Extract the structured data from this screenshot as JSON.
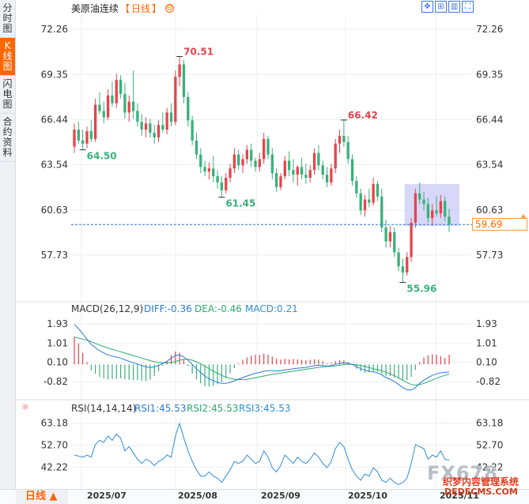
{
  "side_tabs": [
    {
      "label": "分时图",
      "active": false
    },
    {
      "label": "K线图",
      "active": true
    },
    {
      "label": "闪电图",
      "active": false
    },
    {
      "label": "合约资料",
      "active": false
    }
  ],
  "header": {
    "instrument": "美原油连续",
    "period_open": "【",
    "period": "日线",
    "period_close": "】",
    "toggle_icon": "⊖"
  },
  "tools": [
    {
      "name": "move-icon",
      "glyph": "✥"
    },
    {
      "name": "zoom-in-icon",
      "glyph": "⊞"
    },
    {
      "name": "chart-type-icon",
      "glyph": "▥"
    },
    {
      "name": "fullscreen-icon",
      "glyph": "⛶"
    }
  ],
  "chart_data": {
    "type": "candlestick",
    "x_ticks": [
      "2025/07",
      "2025/08",
      "2025/09",
      "2025/10",
      "2025/11"
    ],
    "y_ticks": [
      72.26,
      69.35,
      66.44,
      63.54,
      60.63,
      57.73
    ],
    "ylim": [
      54.82,
      73.23
    ],
    "current_price": 59.69,
    "annotations": [
      {
        "text": "70.51",
        "value": 70.51,
        "type": "high"
      },
      {
        "text": "64.50",
        "value": 64.5,
        "type": "low"
      },
      {
        "text": "61.45",
        "value": 61.45,
        "type": "low"
      },
      {
        "text": "66.42",
        "value": 66.42,
        "type": "high"
      },
      {
        "text": "55.96",
        "value": 55.96,
        "type": "low"
      }
    ],
    "colors": {
      "up": "#e8434b",
      "down": "#3ab07a",
      "grid": "#e8ebf0",
      "price_line": "#2f7ccc",
      "highlight": "#b9bcf2"
    },
    "candles": [
      {
        "o": 64.7,
        "h": 66.2,
        "l": 64.3,
        "c": 65.8
      },
      {
        "o": 65.8,
        "h": 66.3,
        "l": 64.9,
        "c": 65.1
      },
      {
        "o": 65.1,
        "h": 65.8,
        "l": 64.5,
        "c": 64.9
      },
      {
        "o": 64.9,
        "h": 66.0,
        "l": 64.6,
        "c": 65.7
      },
      {
        "o": 65.7,
        "h": 66.4,
        "l": 65.0,
        "c": 65.2
      },
      {
        "o": 65.2,
        "h": 67.8,
        "l": 65.0,
        "c": 67.4
      },
      {
        "o": 67.4,
        "h": 68.2,
        "l": 66.8,
        "c": 67.0
      },
      {
        "o": 67.0,
        "h": 67.6,
        "l": 66.2,
        "c": 66.6
      },
      {
        "o": 66.6,
        "h": 68.4,
        "l": 66.4,
        "c": 68.0
      },
      {
        "o": 68.0,
        "h": 68.9,
        "l": 67.3,
        "c": 67.5
      },
      {
        "o": 67.5,
        "h": 69.4,
        "l": 67.2,
        "c": 69.0
      },
      {
        "o": 69.0,
        "h": 69.3,
        "l": 67.8,
        "c": 68.1
      },
      {
        "o": 68.1,
        "h": 68.8,
        "l": 66.5,
        "c": 66.9
      },
      {
        "o": 66.9,
        "h": 68.0,
        "l": 66.3,
        "c": 67.6
      },
      {
        "o": 67.6,
        "h": 69.6,
        "l": 66.5,
        "c": 67.0
      },
      {
        "o": 67.0,
        "h": 67.5,
        "l": 66.0,
        "c": 66.3
      },
      {
        "o": 66.3,
        "h": 66.8,
        "l": 65.4,
        "c": 65.8
      },
      {
        "o": 65.8,
        "h": 66.6,
        "l": 65.3,
        "c": 66.2
      },
      {
        "o": 66.2,
        "h": 66.5,
        "l": 65.3,
        "c": 65.6
      },
      {
        "o": 65.6,
        "h": 66.1,
        "l": 64.9,
        "c": 65.3
      },
      {
        "o": 65.3,
        "h": 66.4,
        "l": 65.0,
        "c": 66.1
      },
      {
        "o": 66.1,
        "h": 66.9,
        "l": 65.6,
        "c": 65.8
      },
      {
        "o": 65.8,
        "h": 67.2,
        "l": 65.5,
        "c": 66.9
      },
      {
        "o": 66.9,
        "h": 67.5,
        "l": 66.0,
        "c": 66.3
      },
      {
        "o": 66.3,
        "h": 69.6,
        "l": 66.1,
        "c": 69.2
      },
      {
        "o": 69.2,
        "h": 70.51,
        "l": 68.6,
        "c": 70.0
      },
      {
        "o": 70.0,
        "h": 70.3,
        "l": 67.5,
        "c": 67.9
      },
      {
        "o": 67.9,
        "h": 68.2,
        "l": 66.0,
        "c": 66.4
      },
      {
        "o": 66.4,
        "h": 66.7,
        "l": 64.8,
        "c": 65.1
      },
      {
        "o": 65.1,
        "h": 65.6,
        "l": 63.9,
        "c": 64.2
      },
      {
        "o": 64.2,
        "h": 64.6,
        "l": 63.0,
        "c": 63.4
      },
      {
        "o": 63.4,
        "h": 63.8,
        "l": 62.8,
        "c": 63.1
      },
      {
        "o": 63.1,
        "h": 63.7,
        "l": 62.6,
        "c": 63.3
      },
      {
        "o": 63.3,
        "h": 64.1,
        "l": 62.4,
        "c": 62.8
      },
      {
        "o": 62.8,
        "h": 63.2,
        "l": 62.0,
        "c": 62.4
      },
      {
        "o": 62.4,
        "h": 62.8,
        "l": 61.45,
        "c": 61.9
      },
      {
        "o": 61.9,
        "h": 63.0,
        "l": 61.7,
        "c": 62.7
      },
      {
        "o": 62.7,
        "h": 63.6,
        "l": 62.4,
        "c": 63.3
      },
      {
        "o": 63.3,
        "h": 64.6,
        "l": 63.0,
        "c": 64.2
      },
      {
        "o": 64.2,
        "h": 64.5,
        "l": 63.2,
        "c": 63.5
      },
      {
        "o": 63.5,
        "h": 64.2,
        "l": 63.0,
        "c": 63.9
      },
      {
        "o": 63.9,
        "h": 64.8,
        "l": 63.6,
        "c": 64.5
      },
      {
        "o": 64.5,
        "h": 64.9,
        "l": 63.4,
        "c": 63.8
      },
      {
        "o": 63.8,
        "h": 64.0,
        "l": 63.1,
        "c": 63.4
      },
      {
        "o": 63.4,
        "h": 64.3,
        "l": 63.1,
        "c": 63.9
      },
      {
        "o": 63.9,
        "h": 65.6,
        "l": 63.6,
        "c": 65.2
      },
      {
        "o": 65.2,
        "h": 65.4,
        "l": 63.9,
        "c": 64.2
      },
      {
        "o": 64.2,
        "h": 64.6,
        "l": 62.6,
        "c": 63.0
      },
      {
        "o": 63.0,
        "h": 63.3,
        "l": 61.8,
        "c": 62.1
      },
      {
        "o": 62.1,
        "h": 63.0,
        "l": 61.9,
        "c": 62.8
      },
      {
        "o": 62.8,
        "h": 64.1,
        "l": 62.6,
        "c": 63.8
      },
      {
        "o": 63.8,
        "h": 64.4,
        "l": 62.8,
        "c": 63.2
      },
      {
        "o": 63.2,
        "h": 63.9,
        "l": 62.4,
        "c": 62.9
      },
      {
        "o": 62.9,
        "h": 63.5,
        "l": 62.2,
        "c": 63.4
      },
      {
        "o": 63.4,
        "h": 64.0,
        "l": 62.6,
        "c": 62.9
      },
      {
        "o": 62.9,
        "h": 63.6,
        "l": 62.3,
        "c": 62.7
      },
      {
        "o": 62.7,
        "h": 63.5,
        "l": 62.4,
        "c": 63.2
      },
      {
        "o": 63.2,
        "h": 64.6,
        "l": 62.9,
        "c": 64.3
      },
      {
        "o": 64.3,
        "h": 64.8,
        "l": 63.2,
        "c": 63.5
      },
      {
        "o": 63.5,
        "h": 63.8,
        "l": 62.6,
        "c": 62.9
      },
      {
        "o": 62.9,
        "h": 63.4,
        "l": 62.1,
        "c": 62.4
      },
      {
        "o": 62.4,
        "h": 63.6,
        "l": 62.2,
        "c": 63.3
      },
      {
        "o": 63.3,
        "h": 65.2,
        "l": 63.0,
        "c": 64.9
      },
      {
        "o": 64.9,
        "h": 65.8,
        "l": 64.3,
        "c": 65.4
      },
      {
        "o": 65.4,
        "h": 66.42,
        "l": 64.7,
        "c": 65.0
      },
      {
        "o": 65.0,
        "h": 65.4,
        "l": 63.6,
        "c": 63.9
      },
      {
        "o": 63.9,
        "h": 64.2,
        "l": 62.2,
        "c": 62.5
      },
      {
        "o": 62.5,
        "h": 62.8,
        "l": 61.4,
        "c": 61.7
      },
      {
        "o": 61.7,
        "h": 62.0,
        "l": 60.3,
        "c": 60.6
      },
      {
        "o": 60.6,
        "h": 61.6,
        "l": 60.2,
        "c": 61.3
      },
      {
        "o": 61.3,
        "h": 62.0,
        "l": 60.8,
        "c": 61.1
      },
      {
        "o": 61.1,
        "h": 62.7,
        "l": 60.9,
        "c": 62.3
      },
      {
        "o": 62.3,
        "h": 62.5,
        "l": 61.2,
        "c": 61.5
      },
      {
        "o": 61.5,
        "h": 62.0,
        "l": 59.2,
        "c": 59.5
      },
      {
        "o": 59.5,
        "h": 60.0,
        "l": 58.2,
        "c": 58.6
      },
      {
        "o": 58.6,
        "h": 59.6,
        "l": 58.2,
        "c": 59.2
      },
      {
        "o": 59.2,
        "h": 59.5,
        "l": 57.6,
        "c": 57.9
      },
      {
        "o": 57.9,
        "h": 58.2,
        "l": 56.7,
        "c": 57.0
      },
      {
        "o": 57.0,
        "h": 57.5,
        "l": 55.96,
        "c": 56.6
      },
      {
        "o": 56.6,
        "h": 57.9,
        "l": 56.4,
        "c": 57.6
      },
      {
        "o": 57.6,
        "h": 60.1,
        "l": 57.3,
        "c": 59.8
      },
      {
        "o": 59.8,
        "h": 62.0,
        "l": 59.5,
        "c": 61.7
      },
      {
        "o": 61.7,
        "h": 62.4,
        "l": 61.0,
        "c": 61.3
      },
      {
        "o": 61.3,
        "h": 61.8,
        "l": 60.6,
        "c": 61.0
      },
      {
        "o": 61.0,
        "h": 61.4,
        "l": 59.8,
        "c": 60.1
      },
      {
        "o": 60.1,
        "h": 61.0,
        "l": 59.6,
        "c": 60.6
      },
      {
        "o": 60.6,
        "h": 61.5,
        "l": 60.2,
        "c": 60.4
      },
      {
        "o": 60.4,
        "h": 61.6,
        "l": 60.1,
        "c": 61.2
      },
      {
        "o": 61.2,
        "h": 61.5,
        "l": 59.9,
        "c": 60.2
      },
      {
        "o": 60.2,
        "h": 60.7,
        "l": 59.2,
        "c": 59.69
      }
    ],
    "macd": {
      "label": "MACD(26,12,9)",
      "diff_label": "DIFF:-0.36",
      "dea_label": "DEA:-0.46",
      "macd_label": "MACD:0.21",
      "y_ticks": [
        1.93,
        1.01,
        0.1,
        -0.82
      ],
      "ylim": [
        -1.6,
        2.3
      ],
      "colors": {
        "diff": "#2b7bd8",
        "dea": "#2bab6c",
        "macd_up": "#e8434b",
        "macd_down": "#3ab07a"
      },
      "diff": [
        1.9,
        1.7,
        1.45,
        1.2,
        0.95,
        0.8,
        0.65,
        0.55,
        0.45,
        0.4,
        0.35,
        0.3,
        0.22,
        0.15,
        0.08,
        0.02,
        -0.05,
        -0.12,
        -0.15,
        -0.12,
        -0.05,
        0.05,
        0.15,
        0.3,
        0.42,
        0.45,
        0.35,
        0.2,
        0.0,
        -0.2,
        -0.38,
        -0.55,
        -0.68,
        -0.78,
        -0.85,
        -0.9,
        -0.9,
        -0.85,
        -0.78,
        -0.7,
        -0.62,
        -0.55,
        -0.48,
        -0.42,
        -0.38,
        -0.32,
        -0.3,
        -0.3,
        -0.32,
        -0.3,
        -0.26,
        -0.24,
        -0.2,
        -0.18,
        -0.16,
        -0.14,
        -0.1,
        -0.06,
        -0.04,
        -0.05,
        -0.08,
        -0.06,
        0.0,
        0.05,
        0.08,
        0.06,
        0.0,
        -0.1,
        -0.2,
        -0.28,
        -0.32,
        -0.35,
        -0.4,
        -0.5,
        -0.62,
        -0.7,
        -0.82,
        -0.95,
        -1.1,
        -1.2,
        -1.22,
        -1.1,
        -0.9,
        -0.75,
        -0.62,
        -0.52,
        -0.45,
        -0.4,
        -0.38,
        -0.36
      ],
      "dea": [
        1.3,
        1.25,
        1.2,
        1.15,
        1.08,
        1.0,
        0.92,
        0.85,
        0.78,
        0.72,
        0.66,
        0.6,
        0.54,
        0.48,
        0.42,
        0.36,
        0.3,
        0.24,
        0.18,
        0.13,
        0.1,
        0.08,
        0.08,
        0.1,
        0.14,
        0.2,
        0.24,
        0.24,
        0.2,
        0.12,
        0.03,
        -0.08,
        -0.2,
        -0.32,
        -0.42,
        -0.52,
        -0.6,
        -0.66,
        -0.7,
        -0.72,
        -0.72,
        -0.7,
        -0.67,
        -0.63,
        -0.59,
        -0.55,
        -0.51,
        -0.47,
        -0.44,
        -0.41,
        -0.38,
        -0.35,
        -0.32,
        -0.29,
        -0.26,
        -0.23,
        -0.2,
        -0.17,
        -0.14,
        -0.12,
        -0.1,
        -0.09,
        -0.07,
        -0.04,
        -0.01,
        0.01,
        0.01,
        -0.01,
        -0.05,
        -0.1,
        -0.15,
        -0.2,
        -0.25,
        -0.3,
        -0.37,
        -0.45,
        -0.54,
        -0.64,
        -0.75,
        -0.86,
        -0.95,
        -0.98,
        -0.95,
        -0.9,
        -0.82,
        -0.74,
        -0.66,
        -0.58,
        -0.52,
        -0.46
      ],
      "hist": [
        0.6,
        0.45,
        0.25,
        0.05,
        -0.13,
        -0.2,
        -0.27,
        -0.3,
        -0.33,
        -0.32,
        -0.31,
        -0.3,
        -0.32,
        -0.33,
        -0.34,
        -0.34,
        -0.35,
        -0.36,
        -0.33,
        -0.25,
        -0.15,
        -0.03,
        0.07,
        0.2,
        0.28,
        0.25,
        0.11,
        -0.04,
        -0.2,
        -0.32,
        -0.41,
        -0.47,
        -0.48,
        -0.46,
        -0.43,
        -0.38,
        -0.3,
        -0.19,
        -0.08,
        0.02,
        0.1,
        0.15,
        0.19,
        0.21,
        0.21,
        0.23,
        0.21,
        0.17,
        0.12,
        0.11,
        0.12,
        0.11,
        0.12,
        0.11,
        0.1,
        0.09,
        0.1,
        0.11,
        0.1,
        0.07,
        0.02,
        0.03,
        0.07,
        0.09,
        0.09,
        0.05,
        -0.01,
        -0.09,
        -0.15,
        -0.18,
        -0.17,
        -0.15,
        -0.15,
        -0.2,
        -0.25,
        -0.25,
        -0.28,
        -0.31,
        -0.35,
        -0.34,
        -0.27,
        -0.12,
        0.05,
        0.15,
        0.2,
        0.22,
        0.21,
        0.18,
        0.14,
        0.21
      ]
    },
    "rsi": {
      "label": "RSI(14,14,14)",
      "rsi1_label": "RSI1:45.53",
      "rsi2_label": "RSI2:45.53",
      "rsi3_label": "RSI3:45.53",
      "y_ticks": [
        63.18,
        52.7,
        42.22
      ],
      "ylim": [
        33.0,
        66.0
      ],
      "colors": {
        "line": "#2b8fd8"
      },
      "values": [
        48,
        47.5,
        47,
        48,
        47,
        53,
        55,
        54,
        57,
        55,
        58,
        56,
        50,
        52,
        49,
        46,
        44,
        46,
        45,
        43,
        45,
        46,
        48,
        47,
        57,
        63,
        56,
        50,
        45,
        41,
        38,
        38,
        40,
        38,
        37,
        35,
        38,
        41,
        45,
        44,
        45,
        48,
        46,
        44,
        45,
        50,
        47,
        42,
        40,
        43,
        48,
        46,
        44,
        47,
        45,
        44,
        46,
        49,
        47,
        44,
        42,
        45,
        51,
        54,
        52,
        46,
        41,
        38,
        36,
        39,
        38,
        42,
        40,
        36,
        35,
        37,
        35,
        34,
        35,
        37,
        44,
        53,
        52,
        51,
        46,
        48,
        47,
        50,
        46,
        45.53
      ]
    }
  },
  "bottom": {
    "period_button": "日线",
    "period_arrow": "▲"
  },
  "watermark": {
    "brand": "FX678",
    "line1": "织梦内容管理系统",
    "line2": "DEDECMS.COM"
  }
}
